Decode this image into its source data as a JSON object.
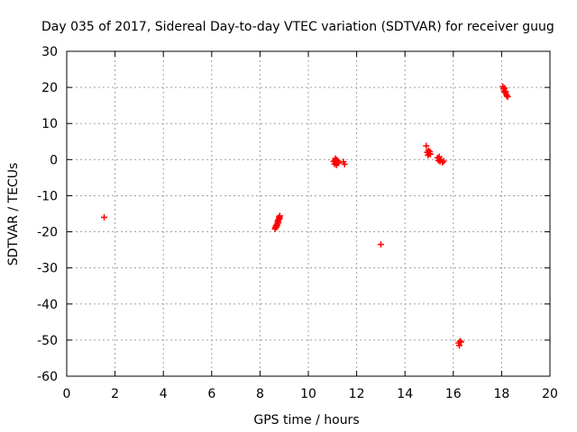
{
  "chart_data": {
    "type": "scatter",
    "title": "Day 035 of 2017, Sidereal Day-to-day VTEC variation (SDTVAR) for receiver guug",
    "xlabel": "GPS time / hours",
    "ylabel": "SDTVAR / TECUs",
    "xlim": [
      0,
      20
    ],
    "ylim": [
      -60,
      30
    ],
    "xticks": [
      0,
      2,
      4,
      6,
      8,
      10,
      12,
      14,
      16,
      18,
      20
    ],
    "yticks": [
      -60,
      -50,
      -40,
      -30,
      -20,
      -10,
      0,
      10,
      20,
      30
    ],
    "grid": true,
    "marker": "+",
    "color": "#ff0000",
    "series": [
      {
        "name": "SDTVAR",
        "points": [
          [
            1.55,
            -16.0
          ],
          [
            8.62,
            -19.2
          ],
          [
            8.64,
            -18.8
          ],
          [
            8.66,
            -18.3
          ],
          [
            8.68,
            -18.7
          ],
          [
            8.7,
            -17.9
          ],
          [
            8.71,
            -18.2
          ],
          [
            8.73,
            -17.4
          ],
          [
            8.74,
            -17.0
          ],
          [
            8.75,
            -16.8
          ],
          [
            8.76,
            -17.5
          ],
          [
            8.78,
            -16.5
          ],
          [
            8.79,
            -16.0
          ],
          [
            8.8,
            -15.9
          ],
          [
            8.81,
            -16.3
          ],
          [
            8.82,
            -15.6
          ],
          [
            11.05,
            -0.5
          ],
          [
            11.08,
            -1.2
          ],
          [
            11.1,
            -0.2
          ],
          [
            11.12,
            0.3
          ],
          [
            11.14,
            -0.8
          ],
          [
            11.16,
            -1.5
          ],
          [
            11.18,
            -0.1
          ],
          [
            11.2,
            -1.0
          ],
          [
            11.22,
            -0.4
          ],
          [
            11.25,
            -0.9
          ],
          [
            11.45,
            -0.6
          ],
          [
            11.5,
            -1.3
          ],
          [
            13.0,
            -23.5
          ],
          [
            14.88,
            3.8
          ],
          [
            14.92,
            2.0
          ],
          [
            14.95,
            1.2
          ],
          [
            14.97,
            2.5
          ],
          [
            15.0,
            1.6
          ],
          [
            15.03,
            2.2
          ],
          [
            15.05,
            1.5
          ],
          [
            15.35,
            0.5
          ],
          [
            15.38,
            -0.2
          ],
          [
            15.42,
            0.8
          ],
          [
            15.45,
            -0.5
          ],
          [
            15.5,
            0.0
          ],
          [
            15.55,
            -0.8
          ],
          [
            15.6,
            -0.4
          ],
          [
            16.22,
            -50.8
          ],
          [
            16.25,
            -51.5
          ],
          [
            16.28,
            -50.3
          ],
          [
            16.32,
            -50.5
          ],
          [
            18.05,
            20.2
          ],
          [
            18.08,
            19.6
          ],
          [
            18.1,
            19.0
          ],
          [
            18.12,
            19.8
          ],
          [
            18.15,
            18.6
          ],
          [
            18.17,
            18.8
          ],
          [
            18.2,
            18.0
          ],
          [
            18.22,
            17.6
          ],
          [
            18.25,
            17.4
          ]
        ]
      }
    ]
  }
}
